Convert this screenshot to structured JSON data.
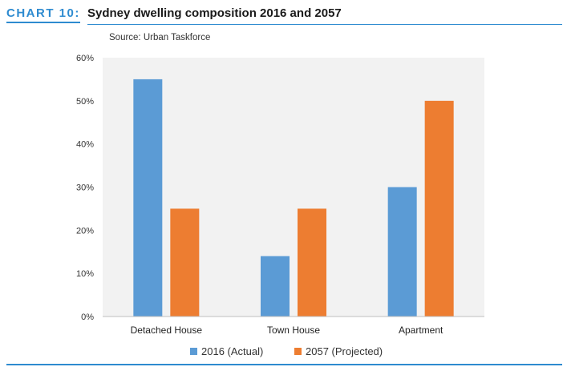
{
  "header": {
    "chart_label": "CHART 10:",
    "title": "Sydney dwelling composition 2016 and 2057"
  },
  "chart_data": {
    "type": "bar",
    "subtitle": "Source: Urban Taskforce",
    "categories": [
      "Detached House",
      "Town House",
      "Apartment"
    ],
    "series": [
      {
        "name": "2016 (Actual)",
        "values": [
          55,
          14,
          30
        ],
        "color": "#5b9bd5"
      },
      {
        "name": "2057 (Projected)",
        "values": [
          25,
          25,
          50
        ],
        "color": "#ed7d31"
      }
    ],
    "xlabel": "",
    "ylabel": "",
    "ylim": [
      0,
      60
    ],
    "yticks": [
      "0%",
      "10%",
      "20%",
      "30%",
      "40%",
      "50%",
      "60%"
    ],
    "grid": false,
    "legend": "bottom",
    "plot_background": "#f2f2f2"
  }
}
